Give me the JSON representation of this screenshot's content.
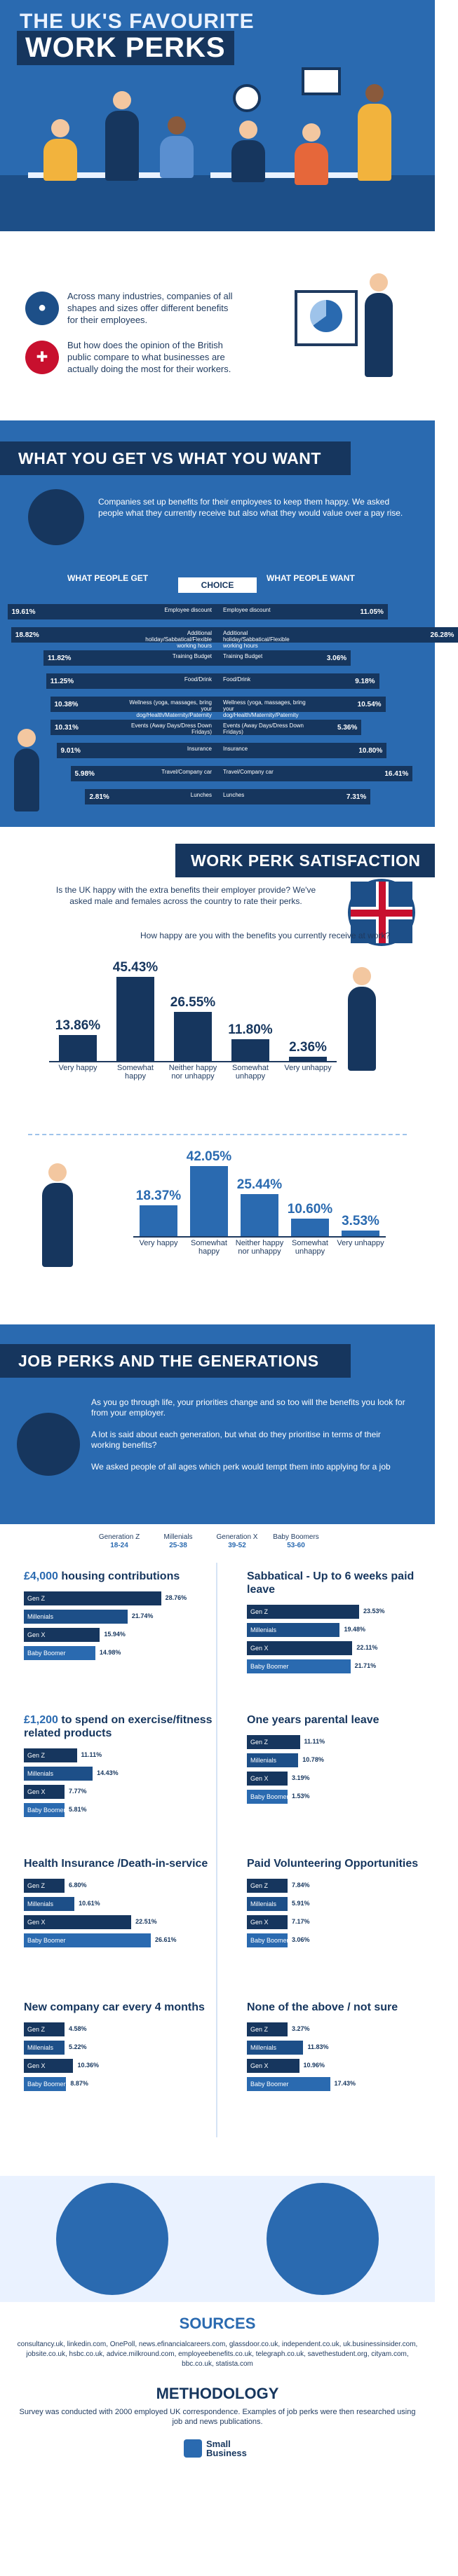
{
  "hero": {
    "title_line1": "THE UK'S FAVOURITE",
    "title_line2": "WORK PERKS"
  },
  "intro": {
    "p1": "Across many industries, companies of all shapes and sizes offer different benefits for their employees.",
    "p2": "But how does the opinion of the British public compare to what businesses are actually doing the most for their workers."
  },
  "gvw": {
    "title": "WHAT YOU GET VS WHAT YOU WANT",
    "intro": "Companies set up benefits for their employees to keep them happy. We asked people what they currently receive but also what they would value over a pay rise.",
    "left_head": "WHAT PEOPLE GET",
    "right_head": "WHAT PEOPLE WANT",
    "choice": "CHOICE",
    "rows": [
      {
        "get_label": "Employee discount",
        "get": 19.61,
        "get_text": "19.61%",
        "want_label": "Employee discount",
        "want": 11.05,
        "want_text": "11.05%"
      },
      {
        "get_label": "Additional holiday/Sabbatical/Flexible working hours",
        "get": 18.82,
        "get_text": "18.82%",
        "want_label": "Additional holiday/Sabbatical/Flexible working hours",
        "want": 26.28,
        "want_text": "26.28%"
      },
      {
        "get_label": "Training Budget",
        "get": 11.82,
        "get_text": "11.82%",
        "want_label": "Training Budget",
        "want": 3.06,
        "want_text": "3.06%"
      },
      {
        "get_label": "Food/Drink",
        "get": 11.25,
        "get_text": "11.25%",
        "want_label": "Food/Drink",
        "want": 9.18,
        "want_text": "9.18%"
      },
      {
        "get_label": "Wellness (yoga, massages, bring your dog/Health/Maternity/Paternity",
        "get": 10.38,
        "get_text": "10.38%",
        "want_label": "Wellness (yoga, massages, bring your dog/Health/Maternity/Paternity",
        "want": 10.54,
        "want_text": "10.54%"
      },
      {
        "get_label": "Events (Away Days/Dress Down Fridays)",
        "get": 10.31,
        "get_text": "10.31%",
        "want_label": "Events (Away Days/Dress Down Fridays)",
        "want": 5.36,
        "want_text": "5.36%"
      },
      {
        "get_label": "Insurance",
        "get": 9.01,
        "get_text": "9.01%",
        "want_label": "Insurance",
        "want": 10.8,
        "want_text": "10.80%"
      },
      {
        "get_label": "Travel/Company car",
        "get": 5.98,
        "get_text": "5.98%",
        "want_label": "Travel/Company car",
        "want": 16.41,
        "want_text": "16.41%"
      },
      {
        "get_label": "Lunches",
        "get": 2.81,
        "get_text": "2.81%",
        "want_label": "Lunches",
        "want": 7.31,
        "want_text": "7.31%"
      }
    ]
  },
  "satisfaction": {
    "title": "WORK PERK SATISFACTION",
    "intro": "Is the UK happy with the extra benefits their employer provide? We've asked male and females across the country to rate their perks.",
    "question": "How happy are you with the benefits you currently receive at work?"
  },
  "chart_data": [
    {
      "type": "bar",
      "categories": [
        "Very happy",
        "Somewhat happy",
        "Neither happy nor unhappy",
        "Somewhat unhappy",
        "Very unhappy"
      ],
      "values": [
        13.86,
        45.43,
        26.55,
        11.8,
        2.36
      ],
      "value_labels": [
        "13.86%",
        "45.43%",
        "26.55%",
        "11.80%",
        "2.36%"
      ],
      "color": "#16365e"
    },
    {
      "type": "bar",
      "categories": [
        "Very happy",
        "Somewhat happy",
        "Neither happy nor unhappy",
        "Somewhat unhappy",
        "Very unhappy"
      ],
      "values": [
        18.37,
        42.05,
        25.44,
        10.6,
        3.53
      ],
      "value_labels": [
        "18.37%",
        "42.05%",
        "25.44%",
        "10.60%",
        "3.53%"
      ],
      "color": "#2a6ab0"
    }
  ],
  "generations": {
    "title": "JOB PERKS AND THE GENERATIONS",
    "p1": "As you go through life, your priorities change and so too will the benefits you look for from your employer.",
    "p2": "A lot is said about each generation, but what do they prioritise in terms of their working benefits?",
    "p3": "We asked people of all ages which perk would tempt them into applying for a job",
    "legend": [
      {
        "name": "Generation Z",
        "range": "18-24"
      },
      {
        "name": "Millenials",
        "range": "25-38"
      },
      {
        "name": "Generation X",
        "range": "39-52"
      },
      {
        "name": "Baby Boomers",
        "range": "53-60"
      }
    ],
    "series_names": [
      "Gen Z",
      "Millenials",
      "Gen X",
      "Baby Boomer"
    ],
    "series_colors": [
      "#16365e",
      "#1d4f88",
      "#16365e",
      "#2a6ab0"
    ],
    "perks": [
      {
        "title_hl": "£4,000",
        "title": " housing contributions",
        "values": [
          28.76,
          21.74,
          15.94,
          14.98
        ],
        "labels": [
          "28.76%",
          "21.74%",
          "15.94%",
          "14.98%"
        ]
      },
      {
        "title_hl": "",
        "title": "Sabbatical - Up to 6 weeks paid leave",
        "values": [
          23.53,
          19.48,
          22.11,
          21.71
        ],
        "labels": [
          "23.53%",
          "19.48%",
          "22.11%",
          "21.71%"
        ]
      },
      {
        "title_hl": "£1,200",
        "title": " to spend on exercise/fitness related products",
        "values": [
          11.11,
          14.43,
          7.77,
          5.81
        ],
        "labels": [
          "11.11%",
          "14.43%",
          "7.77%",
          "5.81%"
        ]
      },
      {
        "title_hl": "",
        "title": "One years parental leave",
        "values": [
          11.11,
          10.78,
          3.19,
          1.53
        ],
        "labels": [
          "11.11%",
          "10.78%",
          "3.19%",
          "1.53%"
        ]
      },
      {
        "title_hl": "",
        "title": "Health Insurance /Death-in-service",
        "values": [
          6.8,
          10.61,
          22.51,
          26.61
        ],
        "labels": [
          "6.80%",
          "10.61%",
          "22.51%",
          "26.61%"
        ]
      },
      {
        "title_hl": "",
        "title": "Paid Volunteering Opportunities",
        "values": [
          7.84,
          5.91,
          7.17,
          3.06
        ],
        "labels": [
          "7.84%",
          "5.91%",
          "7.17%",
          "3.06%"
        ]
      },
      {
        "title_hl": "",
        "title": "New company car every 4 months",
        "values": [
          4.58,
          5.22,
          10.36,
          8.87
        ],
        "labels": [
          "4.58%",
          "5.22%",
          "10.36%",
          "8.87%"
        ]
      },
      {
        "title_hl": "",
        "title": "None of the above / not sure",
        "values": [
          3.27,
          11.83,
          10.96,
          17.43
        ],
        "labels": [
          "3.27%",
          "11.83%",
          "10.96%",
          "17.43%"
        ]
      }
    ]
  },
  "sources": {
    "title": "SOURCES",
    "text": "consultancy.uk, linkedin.com, OnePoll, news.efinancialcareers.com, glassdoor.co.uk, independent.co.uk, uk.businessinsider.com, jobsite.co.uk, hsbc.co.uk, advice.milkround.com, employeebenefits.co.uk, telegraph.co.uk, savethestudent.org, cityam.com, bbc.co.uk, statista.com",
    "method_title": "METHODOLOGY",
    "method_text": "Survey was conducted with 2000 employed UK correspondence. Examples of job perks were then researched using job and news publications.",
    "logo_line1": "Small",
    "logo_line2": "Business"
  },
  "colors": {
    "navy": "#16365e",
    "blue": "#2a6ab0",
    "mid": "#1d4f88",
    "light": "#9ec3ea"
  }
}
